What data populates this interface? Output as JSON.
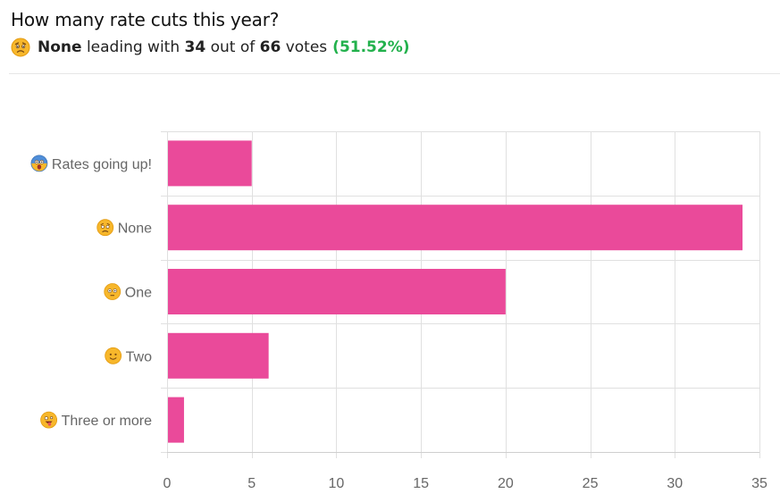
{
  "poll": {
    "question": "How many rate cuts this year?",
    "leader_icon": "worried-face-emoji",
    "leader": "None",
    "leading_with_text": "leading with",
    "leader_votes": "34",
    "out_of_text": "out of",
    "total_votes": "66",
    "votes_text": "votes",
    "percent": "(51.52%)"
  },
  "colors": {
    "bar": "#ea4a9a",
    "percent": "#22b14c",
    "grid": "#e0e0e0"
  },
  "chart_data": {
    "type": "bar",
    "orientation": "horizontal",
    "categories": [
      "Rates going up!",
      "None",
      "One",
      "Two",
      "Three or more"
    ],
    "category_icons": [
      "screaming-face-emoji",
      "worried-face-emoji",
      "flushed-face-emoji",
      "smiling-face-emoji",
      "zany-face-emoji"
    ],
    "values": [
      5,
      34,
      20,
      6,
      1
    ],
    "xlim": [
      0,
      35
    ],
    "xticks": [
      0,
      5,
      10,
      15,
      20,
      25,
      30,
      35
    ],
    "grid": true,
    "legend": "none"
  }
}
